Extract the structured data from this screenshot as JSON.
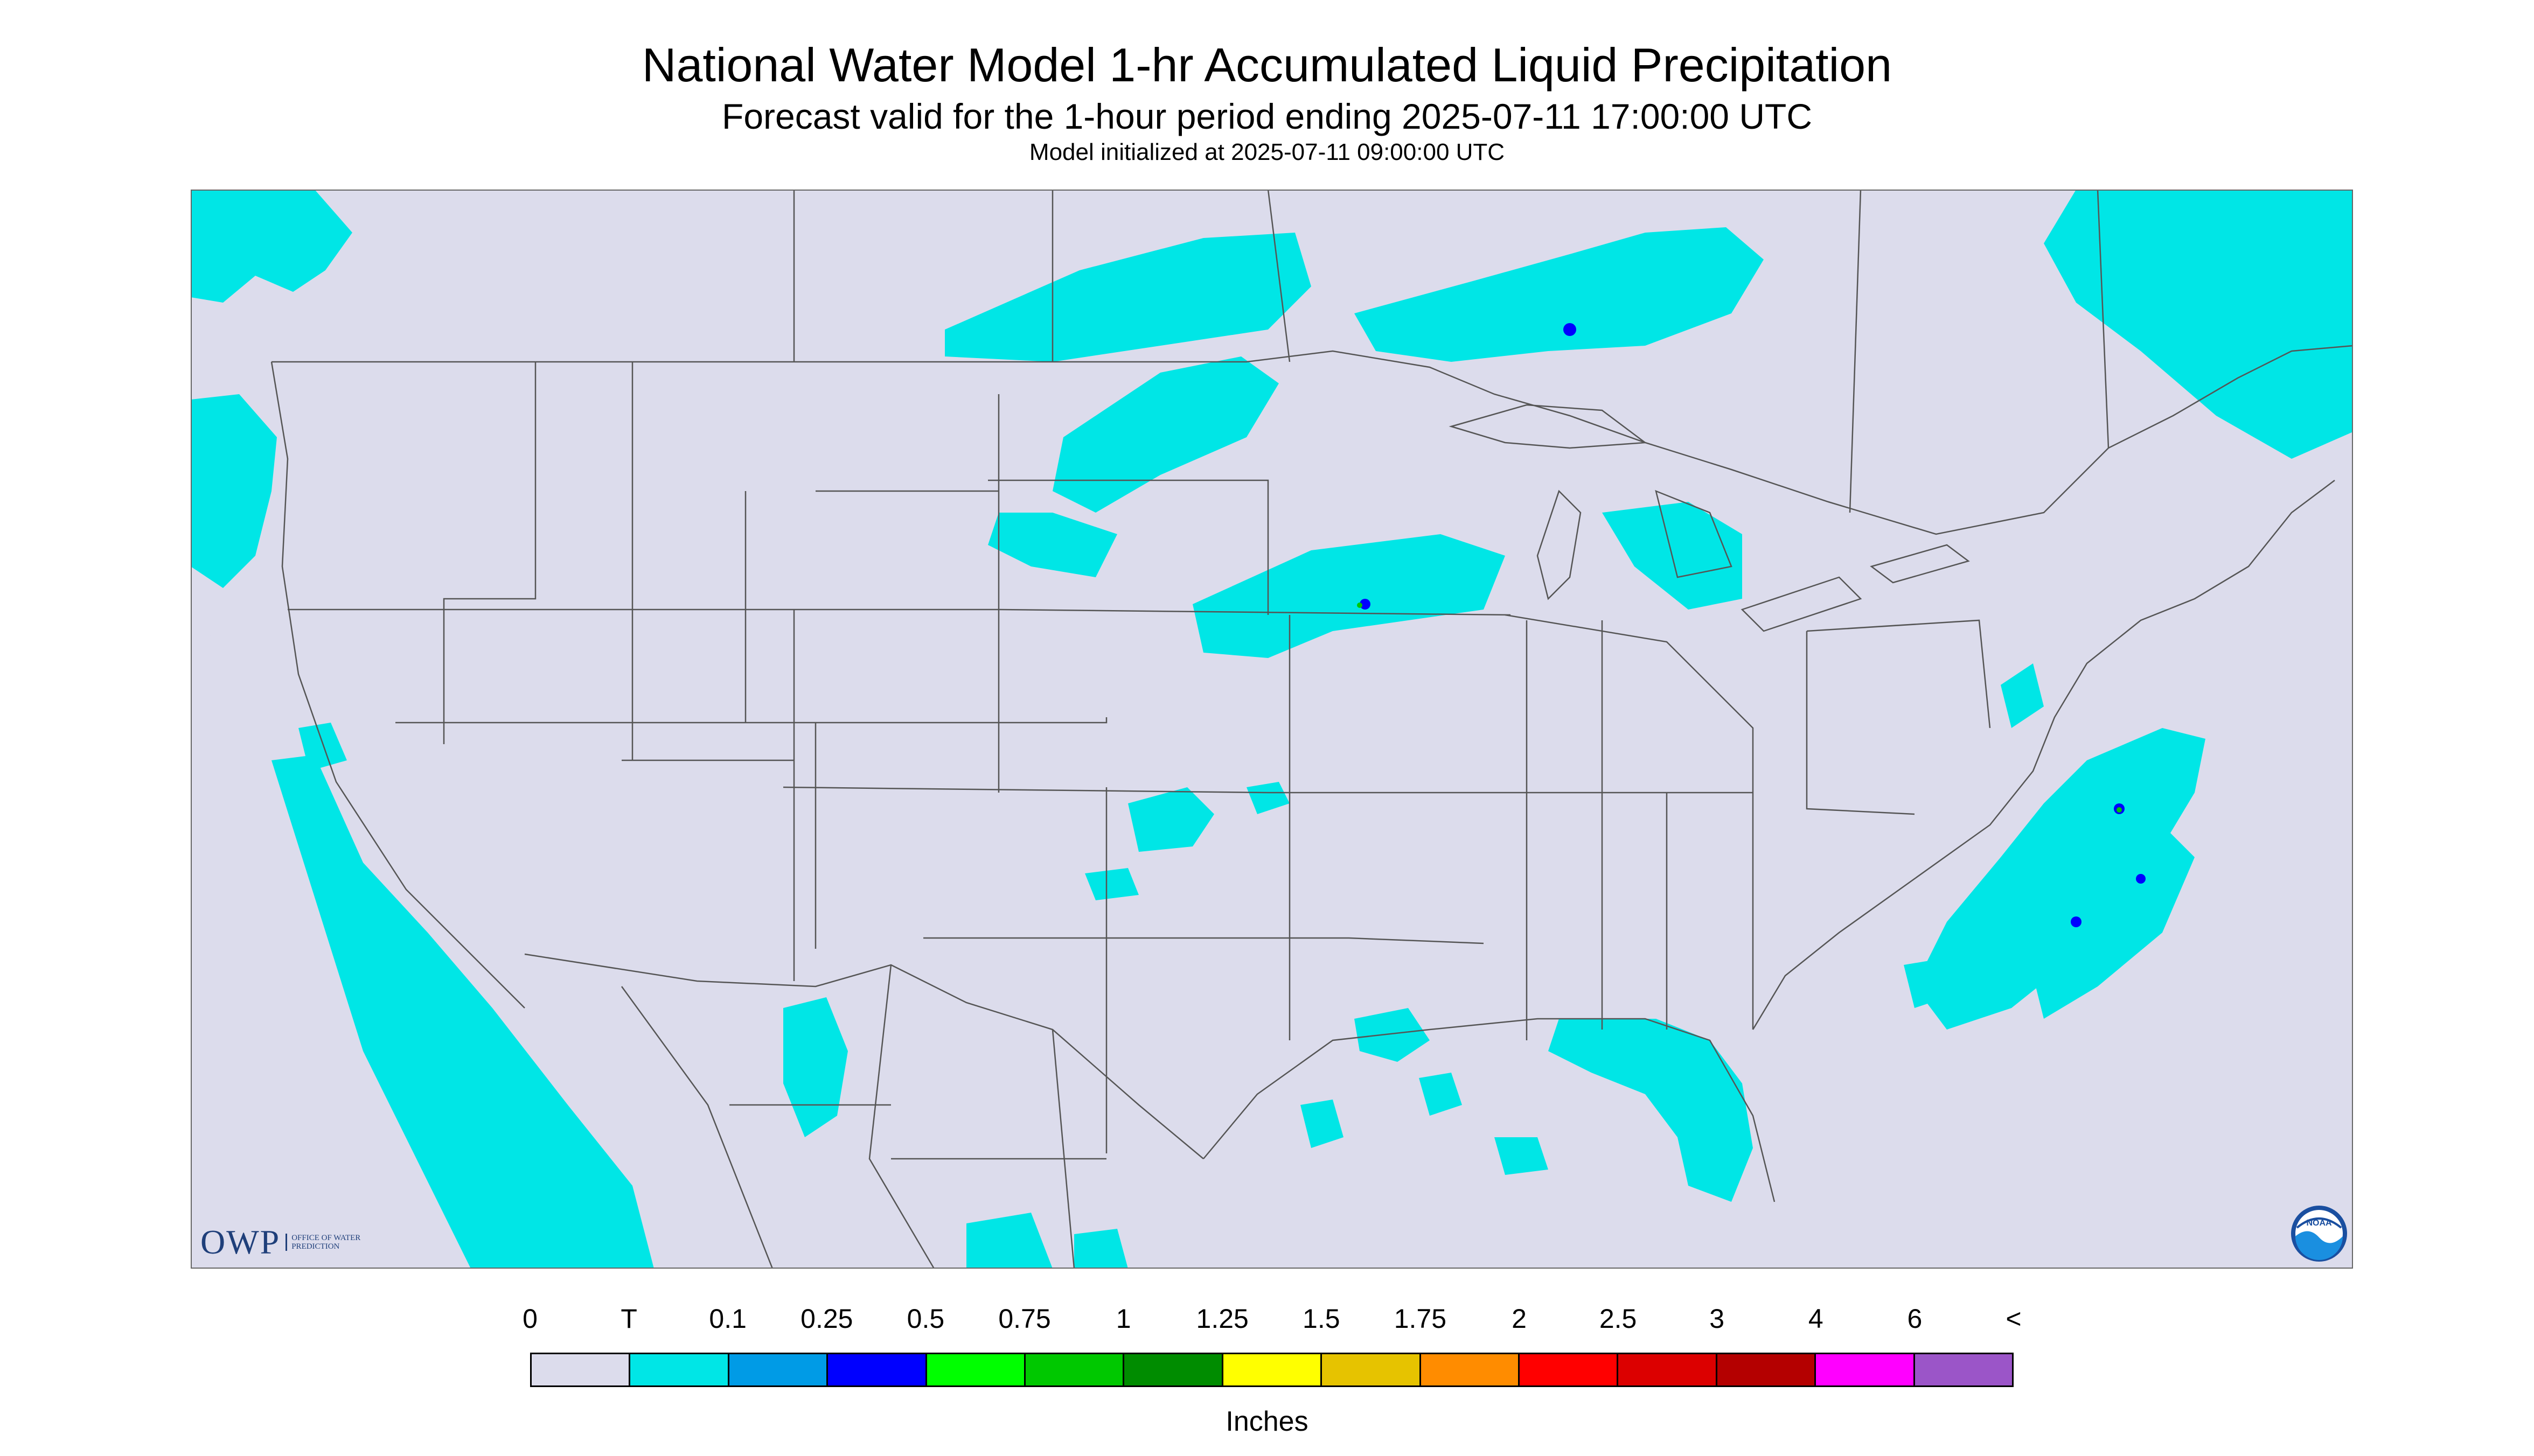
{
  "header": {
    "title": "National Water Model 1-hr Accumulated Liquid Precipitation",
    "subtitle": "Forecast valid for the 1-hour period ending 2025-07-11 17:00:00 UTC",
    "init": "Model initialized at 2025-07-11 09:00:00 UTC"
  },
  "legend": {
    "ticks": [
      "0",
      "T",
      "0.1",
      "0.25",
      "0.5",
      "0.75",
      "1",
      "1.25",
      "1.5",
      "1.75",
      "2",
      "2.5",
      "3",
      "4",
      "6",
      "<"
    ],
    "colors": [
      "#dcdcec",
      "#00e6e6",
      "#009be6",
      "#0000ff",
      "#00ff00",
      "#00c800",
      "#008c00",
      "#ffff00",
      "#e6c300",
      "#ff8c00",
      "#ff0000",
      "#dc0000",
      "#b40000",
      "#ff00ff",
      "#9b55c8"
    ],
    "units": "Inches"
  },
  "map": {
    "background_color": "#dcdcec",
    "precip_color": "#00e6e6",
    "border_color": "#555555"
  },
  "logos": {
    "owp_mark": "OWP",
    "owp_text": "OFFICE OF WATER PREDICTION",
    "noaa_text": "NOAA"
  }
}
